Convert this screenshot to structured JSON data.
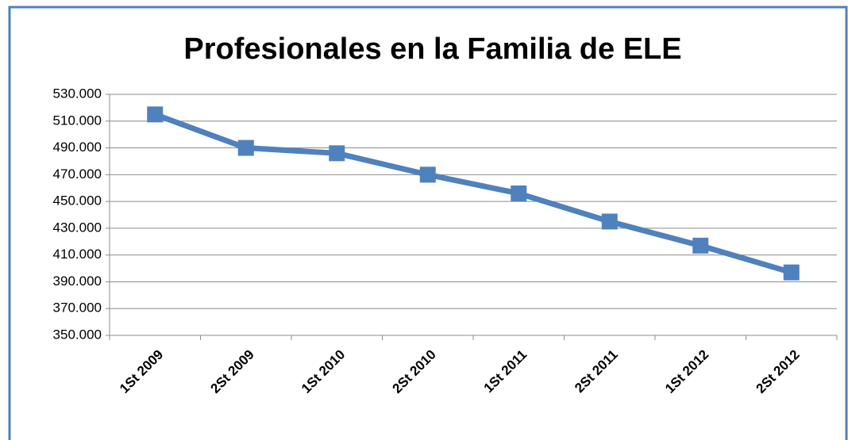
{
  "chart_data": {
    "type": "line",
    "title": "Profesionales en la Familia de ELE",
    "categories": [
      "1St 2009",
      "2St 2009",
      "1St 2010",
      "2St 2010",
      "1St 2011",
      "2St 2011",
      "1St 2012",
      "2St 2012"
    ],
    "series": [
      {
        "name": "Profesionales",
        "color": "#4f81bd",
        "values": [
          515000,
          490000,
          486000,
          470000,
          456000,
          435000,
          417000,
          397000
        ]
      }
    ],
    "ylim": [
      350000,
      530000
    ],
    "yticks": [
      {
        "value": 350000,
        "label": "350.000"
      },
      {
        "value": 370000,
        "label": "370.000"
      },
      {
        "value": 390000,
        "label": "390.000"
      },
      {
        "value": 410000,
        "label": "410.000"
      },
      {
        "value": 430000,
        "label": "430.000"
      },
      {
        "value": 450000,
        "label": "450.000"
      },
      {
        "value": 470000,
        "label": "470.000"
      },
      {
        "value": 490000,
        "label": "490.000"
      },
      {
        "value": 510000,
        "label": "510.000"
      },
      {
        "value": 530000,
        "label": "530.000"
      }
    ],
    "grid": true
  }
}
